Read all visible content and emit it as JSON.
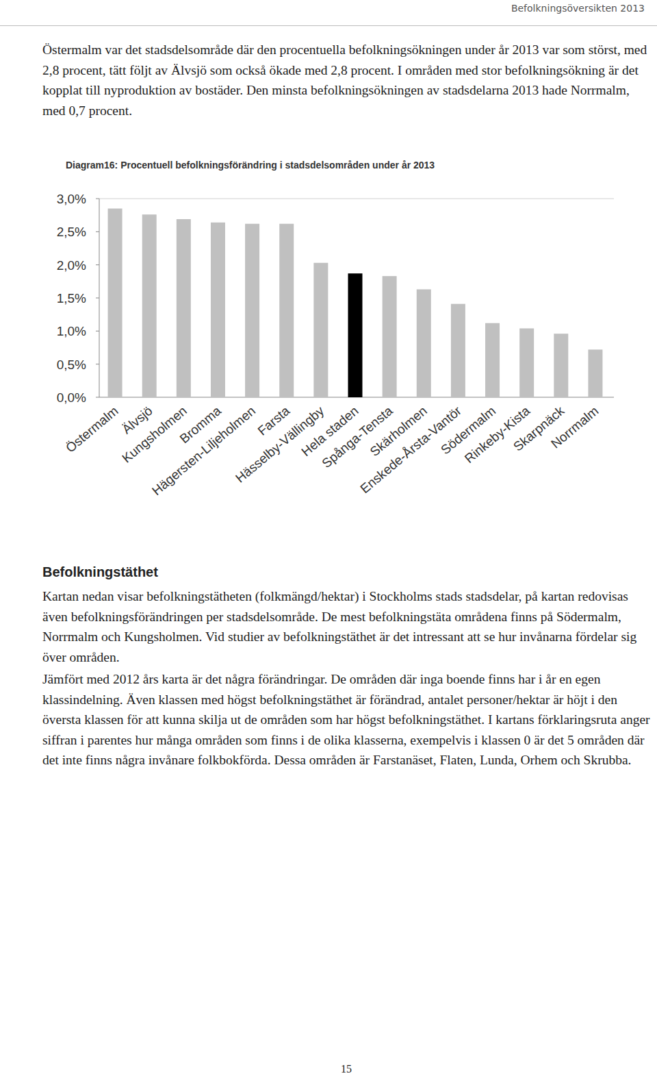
{
  "header": {
    "title": "Befolkningsöversikten 2013"
  },
  "paragraphs": [
    "Östermalm var det stadsdelsområde där den procentuella befolkningsökningen under år 2013 var som störst, med 2,8 procent, tätt följt av Älvsjö som också ökade med 2,8 procent. I områden med stor befolkningsökning är det kopplat till nyproduktion av bostäder. Den minsta befolkningsökningen av stadsdelarna 2013 hade Norrmalm, med 0,7 procent."
  ],
  "chart_data": {
    "type": "bar",
    "title": "Diagram16: Procentuell befolkningsförändring i stadsdelsområden under år 2013",
    "categories": [
      "Östermalm",
      "Älvsjö",
      "Kungsholmen",
      "Bromma",
      "Hägersten-Liljeholmen",
      "Farsta",
      "Hässelby-Vällingby",
      "Hela staden",
      "Spånga-Tensta",
      "Skärholmen",
      "Enskede-Årsta-Vantör",
      "Södermalm",
      "Rinkeby-Kista",
      "Skarpnäck",
      "Norrmalm"
    ],
    "values": [
      2.85,
      2.76,
      2.69,
      2.64,
      2.62,
      2.62,
      2.03,
      1.87,
      1.83,
      1.63,
      1.41,
      1.12,
      1.04,
      0.96,
      0.72
    ],
    "colors": [
      "#c0c0c0",
      "#c0c0c0",
      "#c0c0c0",
      "#c0c0c0",
      "#c0c0c0",
      "#c0c0c0",
      "#c0c0c0",
      "#000000",
      "#c0c0c0",
      "#c0c0c0",
      "#c0c0c0",
      "#c0c0c0",
      "#c0c0c0",
      "#c0c0c0",
      "#c0c0c0"
    ],
    "ylim": [
      0,
      3
    ],
    "yticks": [
      {
        "value": 0,
        "label": "0,0%"
      },
      {
        "value": 0.5,
        "label": "0,5%"
      },
      {
        "value": 1,
        "label": "1,0%"
      },
      {
        "value": 1.5,
        "label": "1,5%"
      },
      {
        "value": 2,
        "label": "2,0%"
      },
      {
        "value": 2.5,
        "label": "2,5%"
      },
      {
        "value": 3,
        "label": "3,0%"
      }
    ],
    "grid": false
  },
  "section": {
    "heading": "Befolkningstäthet",
    "paragraphs": [
      "Kartan nedan visar befolkningstätheten (folkmängd/hektar) i Stockholms stads stadsdelar, på kartan redovisas även befolkningsförändringen per stadsdelsområde. De mest befolkningstäta områdena finns på Södermalm, Norrmalm och Kungsholmen. Vid studier av befolkningstäthet är det intressant att se hur invånarna fördelar sig över områden.",
      "Jämfört med 2012 års karta är det några förändringar. De områden där inga boende finns har i år en egen klassindelning. Även klassen med högst befolkningstäthet är förändrad, antalet personer/hektar är höjt i den översta klassen för att kunna skilja ut de områden som har högst befolkningstäthet. I kartans förklaringsruta anger siffran i parentes hur många områden som finns i de olika klasserna, exempelvis i klassen 0 är det 5 områden där det inte finns några invånare folkbokförda. Dessa områden är Farstanäset, Flaten, Lunda, Orhem och Skrubba."
    ]
  },
  "page_number": "15"
}
